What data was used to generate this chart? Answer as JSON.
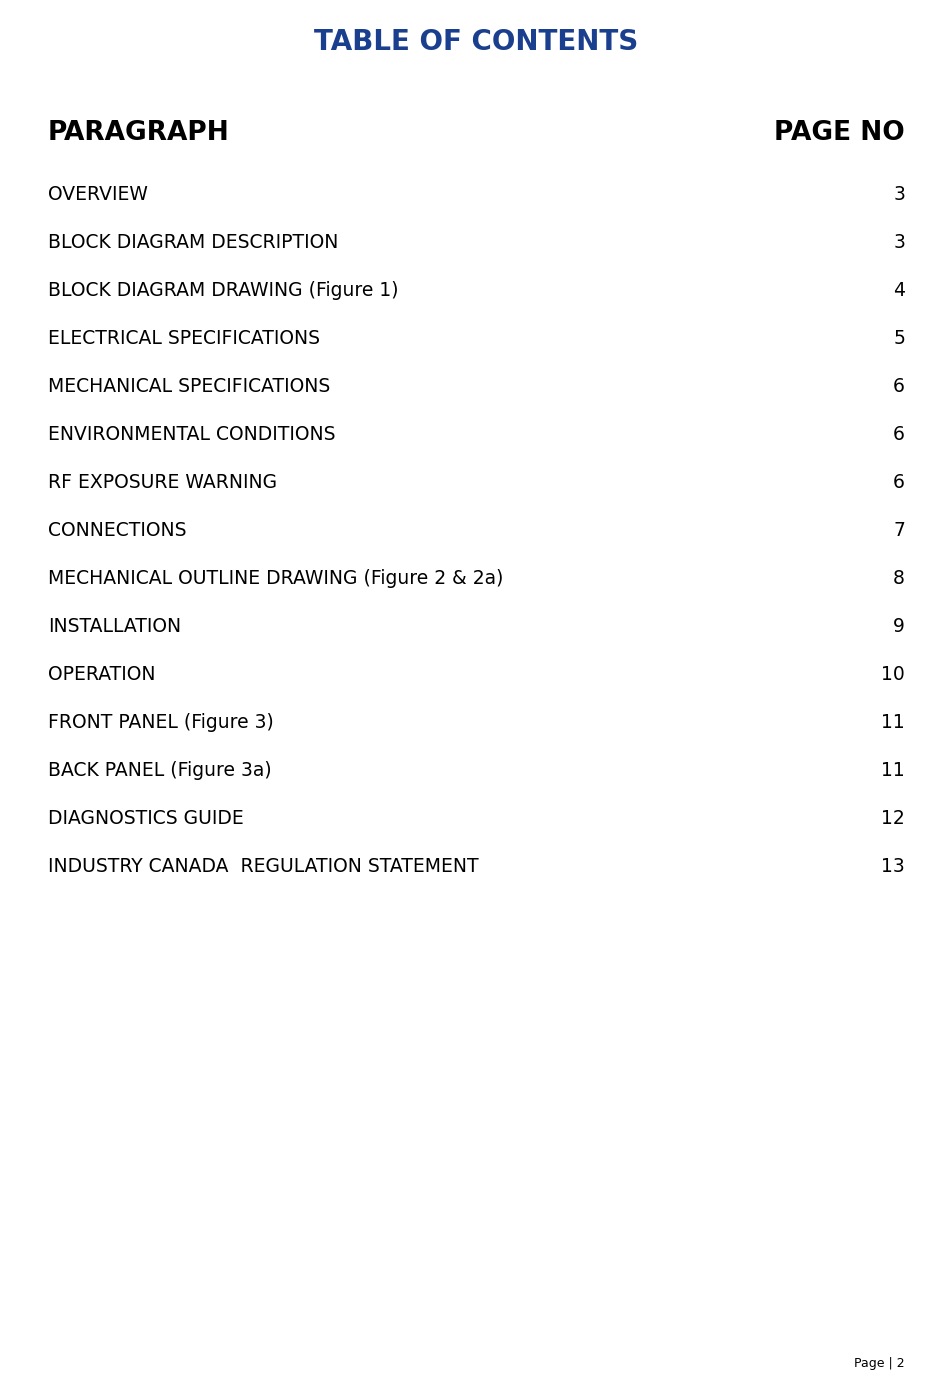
{
  "title": "TABLE OF CONTENTS",
  "title_color": "#1A3F8F",
  "title_fontsize": 20,
  "header_left": "PARAGRAPH",
  "header_right": "PAGE NO",
  "header_fontsize": 19,
  "row_fontsize": 13.5,
  "background_color": "#ffffff",
  "text_color": "#000000",
  "entries": [
    {
      "paragraph": "OVERVIEW",
      "page": "3"
    },
    {
      "paragraph": "BLOCK DIAGRAM DESCRIPTION",
      "page": "3"
    },
    {
      "paragraph": "BLOCK DIAGRAM DRAWING (Figure 1)",
      "page": "4"
    },
    {
      "paragraph": "ELECTRICAL SPECIFICATIONS",
      "page": "5"
    },
    {
      "paragraph": "MECHANICAL SPECIFICATIONS",
      "page": "6"
    },
    {
      "paragraph": "ENVIRONMENTAL CONDITIONS",
      "page": "6"
    },
    {
      "paragraph": "RF EXPOSURE WARNING",
      "page": "6"
    },
    {
      "paragraph": "CONNECTIONS",
      "page": "7"
    },
    {
      "paragraph": "MECHANICAL OUTLINE DRAWING (Figure 2 & 2a)",
      "page": "8"
    },
    {
      "paragraph": "INSTALLATION",
      "page": "9"
    },
    {
      "paragraph": "OPERATION",
      "page": "10"
    },
    {
      "paragraph": "FRONT PANEL (Figure 3)",
      "page": "11"
    },
    {
      "paragraph": "BACK PANEL (Figure 3a)",
      "page": "11"
    },
    {
      "paragraph": "DIAGNOSTICS GUIDE",
      "page": "12"
    },
    {
      "paragraph": "INDUSTRY CANADA  REGULATION STATEMENT",
      "page": "13"
    }
  ],
  "page_label": "Page | 2",
  "page_label_fontsize": 9
}
